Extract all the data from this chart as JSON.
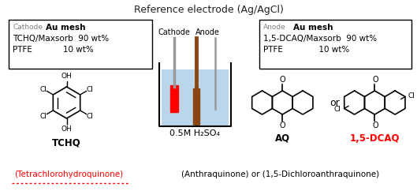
{
  "title": "Reference electrode (Ag/AgCl)",
  "title_fontsize": 9,
  "bg_color": "#ffffff",
  "left_box_text_cathode": "Cathode",
  "left_box_text_au": "Au mesh",
  "left_box_line2": "TCHQ/Maxsorb  90 wt%",
  "left_box_line3": "PTFE            10 wt%",
  "right_box_text_anode": "Anode",
  "right_box_text_au": "Au mesh",
  "right_box_line2": "1,5-DCAQ/Maxsorb  90 wt%",
  "right_box_line3": "PTFE              10 wt%",
  "solution_label": "0.5M H₂SO₄",
  "cathode_label": "Cathode",
  "anode_label": "Anode",
  "tchq_label": "TCHQ",
  "aq_label": "AQ",
  "dcaq_label": "1,5-DCAQ",
  "or_label": "or",
  "bottom_left": "(Tetrachlorohydroquinone)",
  "bottom_right": "(Anthraquinone) or (1,5-Dichloroanthraquinone)",
  "red_color": "#ff0000",
  "dark_color": "#222222",
  "box_color": "#000000",
  "blue_color": "#b0cfe8",
  "brown_color": "#8B4513",
  "gray_color": "#999999"
}
